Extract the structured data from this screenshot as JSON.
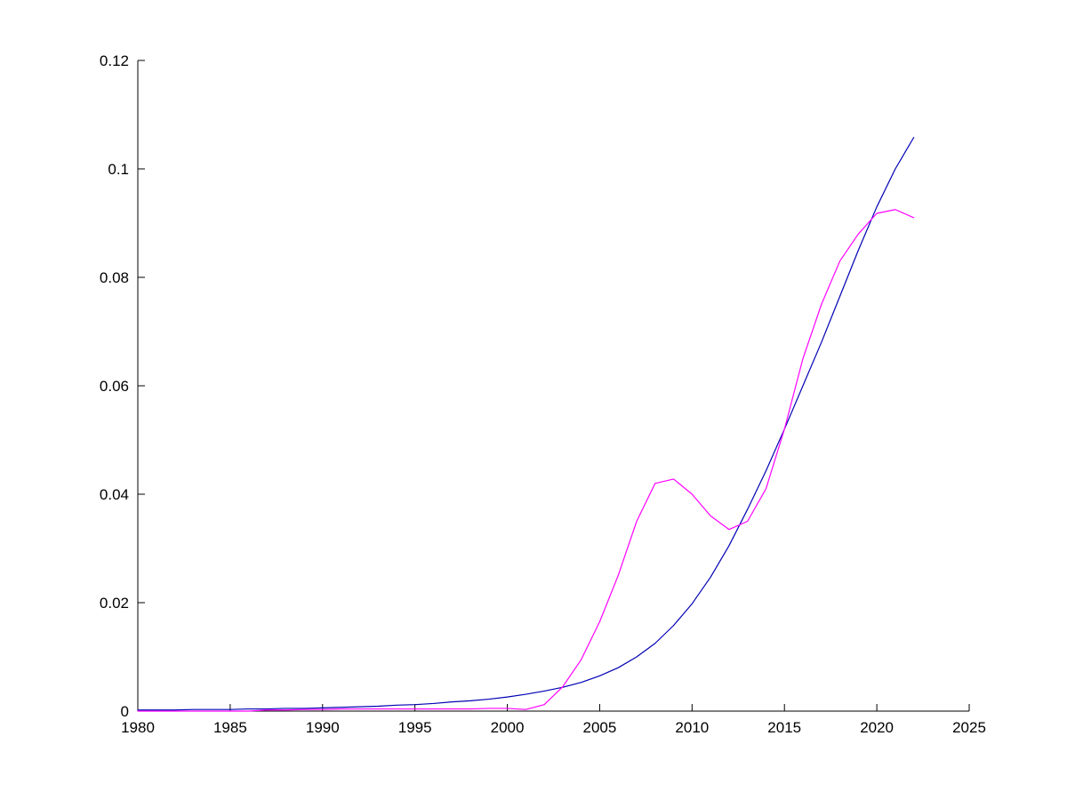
{
  "figure": {
    "background": "#ffffff",
    "axis_color": "#000000",
    "tick_label_color": "#000000"
  },
  "chart_data": {
    "type": "line",
    "title": "",
    "xlabel": "",
    "ylabel": "",
    "grid": false,
    "legend": "none",
    "box": "left-bottom-only",
    "xlim": [
      1980,
      2025
    ],
    "ylim": [
      0,
      0.12
    ],
    "x_ticks": [
      1980,
      1985,
      1990,
      1995,
      2000,
      2005,
      2010,
      2015,
      2020,
      2025
    ],
    "x_tick_labels": [
      "1980",
      "1985",
      "1990",
      "1995",
      "2000",
      "2005",
      "2010",
      "2015",
      "2020",
      "2025"
    ],
    "y_ticks": [
      0,
      0.02,
      0.04,
      0.06,
      0.08,
      0.1,
      0.12
    ],
    "y_tick_labels": [
      "0",
      "0.02",
      "0.04",
      "0.06",
      "0.08",
      "0.1",
      "0.12"
    ],
    "x": [
      1980,
      1981,
      1982,
      1983,
      1984,
      1985,
      1986,
      1987,
      1988,
      1989,
      1990,
      1991,
      1992,
      1993,
      1994,
      1995,
      1996,
      1997,
      1998,
      1999,
      2000,
      2001,
      2002,
      2003,
      2004,
      2005,
      2006,
      2007,
      2008,
      2009,
      2010,
      2011,
      2012,
      2013,
      2014,
      2015,
      2016,
      2017,
      2018,
      2019,
      2020,
      2021,
      2022
    ],
    "series": [
      {
        "name": "smooth-model-curve",
        "color": "#0000b4",
        "stroke_width": 1.2,
        "values": [
          0.0002,
          0.0002,
          0.0002,
          0.0003,
          0.0003,
          0.0003,
          0.0004,
          0.0004,
          0.0005,
          0.0005,
          0.0006,
          0.0007,
          0.0008,
          0.0009,
          0.0011,
          0.0012,
          0.0014,
          0.0017,
          0.0019,
          0.0022,
          0.0026,
          0.0031,
          0.0037,
          0.0044,
          0.0053,
          0.0065,
          0.008,
          0.01,
          0.0125,
          0.0158,
          0.0198,
          0.0247,
          0.0305,
          0.0372,
          0.0443,
          0.052,
          0.06,
          0.068,
          0.0765,
          0.085,
          0.093,
          0.1,
          0.1058
        ]
      },
      {
        "name": "observed-series-curve",
        "color": "#ff00ff",
        "stroke_width": 1.2,
        "values": [
          0.0,
          0.0,
          0.0,
          0.0,
          0.0,
          0.0,
          0.0,
          0.0002,
          0.0002,
          0.0003,
          0.0003,
          0.0004,
          0.0004,
          0.0004,
          0.0004,
          0.0004,
          0.0004,
          0.0004,
          0.0004,
          0.0005,
          0.0005,
          0.0003,
          0.0012,
          0.0045,
          0.0095,
          0.0165,
          0.025,
          0.035,
          0.042,
          0.0428,
          0.04,
          0.036,
          0.0335,
          0.035,
          0.041,
          0.052,
          0.065,
          0.075,
          0.083,
          0.088,
          0.0918,
          0.0925,
          0.091
        ]
      }
    ]
  }
}
